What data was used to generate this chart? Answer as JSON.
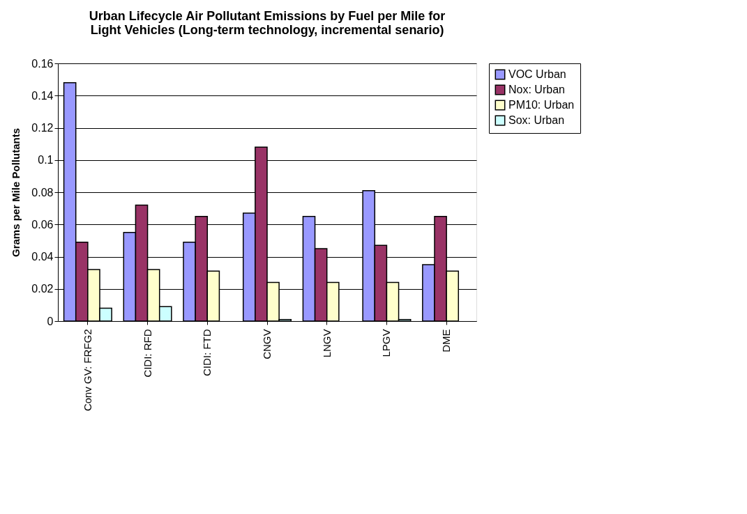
{
  "chart_data": {
    "type": "bar",
    "title": "Urban Lifecycle Air Pollutant Emissions by Fuel per Mile for Light Vehicles (Long-term technology, incremental senario)",
    "ylabel": "Grams per Mile Pollutants",
    "categories": [
      "Conv GV: FRFG2",
      "CIDI: RFD",
      "CIDI: FTD",
      "CNGV",
      "LNGV",
      "LPGV",
      "DME"
    ],
    "series": [
      {
        "name": "VOC Urban",
        "color": "#9999ff",
        "values": [
          0.148,
          0.055,
          0.049,
          0.067,
          0.065,
          0.081,
          0.035
        ]
      },
      {
        "name": "Nox: Urban",
        "color": "#993366",
        "values": [
          0.049,
          0.072,
          0.065,
          0.108,
          0.045,
          0.047,
          0.065
        ]
      },
      {
        "name": "PM10: Urban",
        "color": "#ffffcc",
        "values": [
          0.032,
          0.032,
          0.031,
          0.024,
          0.024,
          0.024,
          0.031
        ]
      },
      {
        "name": "Sox: Urban",
        "color": "#ccffff",
        "values": [
          0.008,
          0.009,
          null,
          0.001,
          null,
          0.001,
          null
        ]
      }
    ],
    "ylim": [
      0,
      0.16
    ],
    "yticks": [
      0,
      0.02,
      0.04,
      0.06,
      0.08,
      0.1,
      0.12,
      0.14,
      0.16
    ],
    "grid": "y",
    "legend": "right"
  }
}
